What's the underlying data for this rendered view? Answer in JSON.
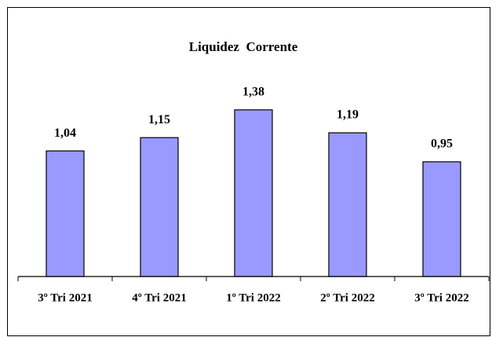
{
  "chart_data": {
    "type": "bar",
    "title": "Liquidez  Corrente",
    "categories": [
      "3º Tri 2021",
      "4º Tri 2021",
      "1º Tri 2022",
      "2º Tri 2022",
      "3º Tri 2022"
    ],
    "values": [
      1.04,
      1.15,
      1.38,
      1.19,
      0.95
    ],
    "value_labels": [
      "1,04",
      "1,15",
      "1,38",
      "1,19",
      "0,95"
    ],
    "color": "#9999ff",
    "ylim": [
      0,
      1.6
    ]
  }
}
